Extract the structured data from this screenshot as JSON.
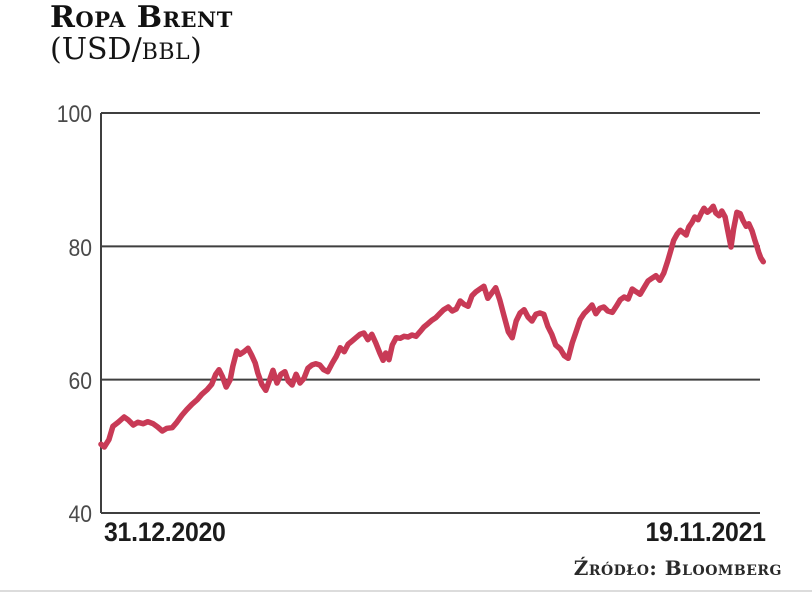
{
  "header": {
    "title": "Ropa Brent",
    "subtitle_pre": "(USD/",
    "subtitle_unit": "BBL",
    "subtitle_post": ")"
  },
  "source_label": "Źródło: Bloomberg",
  "chart_data": {
    "type": "line",
    "title": "Ropa Brent",
    "unit": "USD/BBL",
    "xtick_labels": [
      "31.12.2020",
      "19.11.2021"
    ],
    "yticks": [
      40,
      60,
      80,
      100
    ],
    "ytick_labels": [
      "40",
      "60",
      "80",
      "100"
    ],
    "ylim": [
      40,
      100
    ],
    "grid": "horizontal",
    "legend": "none",
    "line_color": "#c83a56",
    "axis_color": "#3f3f3f",
    "series": [
      {
        "name": "Brent (USD/BBL)",
        "points": [
          [
            0.0,
            50.3
          ],
          [
            0.005,
            49.9
          ],
          [
            0.012,
            51.0
          ],
          [
            0.018,
            53.0
          ],
          [
            0.026,
            53.6
          ],
          [
            0.035,
            54.4
          ],
          [
            0.041,
            54.0
          ],
          [
            0.049,
            53.2
          ],
          [
            0.056,
            53.6
          ],
          [
            0.064,
            53.4
          ],
          [
            0.071,
            53.7
          ],
          [
            0.079,
            53.4
          ],
          [
            0.086,
            52.9
          ],
          [
            0.093,
            52.3
          ],
          [
            0.1,
            52.7
          ],
          [
            0.108,
            52.8
          ],
          [
            0.115,
            53.6
          ],
          [
            0.123,
            54.7
          ],
          [
            0.13,
            55.5
          ],
          [
            0.138,
            56.3
          ],
          [
            0.146,
            57.0
          ],
          [
            0.153,
            57.8
          ],
          [
            0.161,
            58.5
          ],
          [
            0.168,
            59.3
          ],
          [
            0.174,
            60.8
          ],
          [
            0.179,
            61.5
          ],
          [
            0.184,
            60.5
          ],
          [
            0.19,
            58.9
          ],
          [
            0.196,
            60.0
          ],
          [
            0.2,
            62.0
          ],
          [
            0.206,
            64.3
          ],
          [
            0.211,
            63.8
          ],
          [
            0.217,
            64.2
          ],
          [
            0.223,
            64.7
          ],
          [
            0.229,
            63.6
          ],
          [
            0.234,
            62.5
          ],
          [
            0.238,
            61.0
          ],
          [
            0.244,
            59.3
          ],
          [
            0.25,
            58.4
          ],
          [
            0.256,
            60.0
          ],
          [
            0.261,
            61.4
          ],
          [
            0.267,
            59.5
          ],
          [
            0.273,
            60.8
          ],
          [
            0.279,
            61.2
          ],
          [
            0.284,
            59.8
          ],
          [
            0.29,
            59.2
          ],
          [
            0.296,
            60.8
          ],
          [
            0.302,
            59.5
          ],
          [
            0.308,
            60.2
          ],
          [
            0.314,
            61.7
          ],
          [
            0.32,
            62.2
          ],
          [
            0.326,
            62.4
          ],
          [
            0.332,
            62.2
          ],
          [
            0.338,
            61.5
          ],
          [
            0.344,
            61.2
          ],
          [
            0.351,
            62.5
          ],
          [
            0.357,
            63.5
          ],
          [
            0.363,
            64.8
          ],
          [
            0.369,
            64.2
          ],
          [
            0.375,
            65.3
          ],
          [
            0.381,
            65.8
          ],
          [
            0.387,
            66.3
          ],
          [
            0.393,
            66.8
          ],
          [
            0.399,
            67.0
          ],
          [
            0.405,
            66.0
          ],
          [
            0.411,
            66.8
          ],
          [
            0.417,
            65.5
          ],
          [
            0.423,
            64.0
          ],
          [
            0.428,
            62.9
          ],
          [
            0.432,
            64.0
          ],
          [
            0.437,
            63.0
          ],
          [
            0.442,
            65.2
          ],
          [
            0.448,
            66.3
          ],
          [
            0.454,
            66.2
          ],
          [
            0.46,
            66.5
          ],
          [
            0.466,
            66.4
          ],
          [
            0.472,
            66.7
          ],
          [
            0.478,
            66.5
          ],
          [
            0.484,
            67.2
          ],
          [
            0.49,
            67.9
          ],
          [
            0.496,
            68.4
          ],
          [
            0.502,
            68.9
          ],
          [
            0.508,
            69.3
          ],
          [
            0.514,
            69.9
          ],
          [
            0.52,
            70.5
          ],
          [
            0.527,
            70.9
          ],
          [
            0.533,
            70.3
          ],
          [
            0.539,
            70.6
          ],
          [
            0.545,
            71.8
          ],
          [
            0.551,
            71.3
          ],
          [
            0.557,
            71.0
          ],
          [
            0.563,
            72.6
          ],
          [
            0.569,
            73.2
          ],
          [
            0.575,
            73.6
          ],
          [
            0.581,
            74.0
          ],
          [
            0.587,
            72.2
          ],
          [
            0.593,
            73.0
          ],
          [
            0.599,
            73.8
          ],
          [
            0.605,
            72.0
          ],
          [
            0.611,
            69.8
          ],
          [
            0.618,
            67.2
          ],
          [
            0.624,
            66.3
          ],
          [
            0.63,
            68.8
          ],
          [
            0.636,
            70.0
          ],
          [
            0.642,
            70.5
          ],
          [
            0.648,
            69.4
          ],
          [
            0.654,
            68.8
          ],
          [
            0.66,
            69.8
          ],
          [
            0.666,
            70.0
          ],
          [
            0.672,
            69.8
          ],
          [
            0.678,
            68.0
          ],
          [
            0.684,
            66.8
          ],
          [
            0.69,
            65.2
          ],
          [
            0.697,
            64.6
          ],
          [
            0.703,
            63.6
          ],
          [
            0.709,
            63.2
          ],
          [
            0.715,
            65.5
          ],
          [
            0.721,
            67.2
          ],
          [
            0.727,
            69.0
          ],
          [
            0.733,
            69.9
          ],
          [
            0.739,
            70.5
          ],
          [
            0.745,
            71.2
          ],
          [
            0.751,
            69.9
          ],
          [
            0.757,
            70.7
          ],
          [
            0.763,
            70.9
          ],
          [
            0.769,
            70.3
          ],
          [
            0.776,
            70.1
          ],
          [
            0.782,
            71.0
          ],
          [
            0.788,
            72.0
          ],
          [
            0.794,
            72.4
          ],
          [
            0.8,
            72.1
          ],
          [
            0.806,
            73.6
          ],
          [
            0.812,
            73.2
          ],
          [
            0.818,
            72.8
          ],
          [
            0.824,
            73.8
          ],
          [
            0.83,
            74.8
          ],
          [
            0.836,
            75.2
          ],
          [
            0.842,
            75.6
          ],
          [
            0.848,
            74.9
          ],
          [
            0.854,
            76.0
          ],
          [
            0.86,
            77.8
          ],
          [
            0.865,
            79.5
          ],
          [
            0.869,
            80.9
          ],
          [
            0.874,
            81.8
          ],
          [
            0.879,
            82.4
          ],
          [
            0.883,
            82.1
          ],
          [
            0.888,
            81.7
          ],
          [
            0.892,
            82.9
          ],
          [
            0.897,
            83.6
          ],
          [
            0.901,
            84.4
          ],
          [
            0.906,
            84.0
          ],
          [
            0.911,
            85.0
          ],
          [
            0.915,
            85.7
          ],
          [
            0.92,
            85.1
          ],
          [
            0.924,
            85.4
          ],
          [
            0.929,
            86.0
          ],
          [
            0.933,
            85.0
          ],
          [
            0.938,
            84.6
          ],
          [
            0.942,
            85.3
          ],
          [
            0.947,
            84.4
          ],
          [
            0.951,
            82.4
          ],
          [
            0.956,
            79.9
          ],
          [
            0.96,
            82.6
          ],
          [
            0.965,
            85.1
          ],
          [
            0.97,
            84.9
          ],
          [
            0.974,
            83.9
          ],
          [
            0.979,
            83.0
          ],
          [
            0.983,
            83.4
          ],
          [
            0.988,
            82.3
          ],
          [
            0.992,
            81.0
          ],
          [
            0.995,
            80.1
          ],
          [
            0.998,
            79.1
          ],
          [
            1.001,
            78.3
          ],
          [
            1.005,
            77.7
          ]
        ]
      }
    ]
  }
}
